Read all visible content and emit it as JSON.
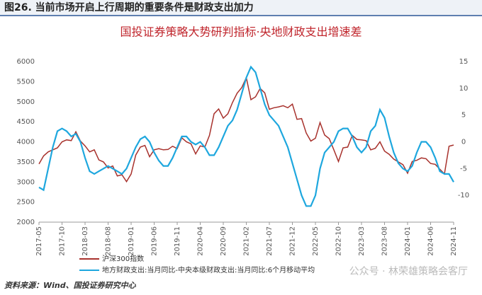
{
  "header": "图26. 当前市场开启上行周期的重要条件是财政支出加力",
  "source": "资料来源：Wind、国投证券研究中心",
  "watermark": "公众号 · 林荣雄策略会客厅",
  "chart_data": {
    "type": "line",
    "title": "国投证券策略大势研判指标·央地财政支出增速差",
    "categories": [
      "2017-05",
      null,
      null,
      null,
      null,
      "2017-10",
      null,
      null,
      null,
      null,
      "2018-03",
      null,
      null,
      null,
      null,
      "2018-08",
      null,
      null,
      null,
      null,
      "2019-01",
      null,
      null,
      null,
      null,
      "2019-06",
      null,
      null,
      null,
      null,
      "2019-11",
      null,
      null,
      null,
      null,
      "2020-04",
      null,
      null,
      null,
      null,
      "2020-09",
      null,
      null,
      null,
      null,
      "2021-02",
      null,
      null,
      null,
      null,
      "2021-07",
      null,
      null,
      null,
      null,
      "2021-12",
      null,
      null,
      null,
      null,
      "2022-05",
      null,
      null,
      null,
      null,
      "2022-10",
      null,
      null,
      null,
      null,
      "2023-03",
      null,
      null,
      null,
      null,
      "2023-08",
      null,
      null,
      null,
      null,
      "2024-01",
      null,
      null,
      null,
      null,
      "2024-06",
      null,
      null,
      null,
      null,
      "2024-11"
    ],
    "series": [
      {
        "name": "沪深300指数",
        "color": "#a8322d",
        "axis": "y",
        "values": [
          3450,
          3650,
          3750,
          3800,
          3850,
          4000,
          4050,
          4030,
          4250,
          4020,
          3900,
          3750,
          3800,
          3550,
          3500,
          3350,
          3400,
          3150,
          3180,
          3010,
          3200,
          3670,
          3870,
          3910,
          3630,
          3800,
          3830,
          3800,
          3810,
          3890,
          3830,
          4100,
          4000,
          3950,
          3700,
          3900,
          3870,
          4160,
          4700,
          4820,
          4590,
          4700,
          4980,
          5210,
          5350,
          5600,
          5050,
          5120,
          5330,
          5220,
          4810,
          4850,
          4870,
          4900,
          4850,
          4940,
          4560,
          4580,
          4220,
          4020,
          4090,
          4480,
          4170,
          4080,
          3800,
          3510,
          3850,
          3870,
          4160,
          4060,
          4050,
          4030,
          3800,
          3840,
          4000,
          3770,
          3690,
          3570,
          3500,
          3430,
          3220,
          3510,
          3540,
          3600,
          3580,
          3460,
          3440,
          3320,
          3200,
          3890,
          3920
        ]
      },
      {
        "name": "地方财政支出:当月同比-中央本级财政支出:当月同比:6个月移动平均",
        "color": "#1ea7de",
        "axis": "y2",
        "values": [
          -8.5,
          -9,
          -5,
          -1,
          2,
          2.5,
          2,
          1,
          1.5,
          0,
          -3,
          -5.5,
          -6,
          -5.5,
          -5,
          -4.5,
          -5,
          -5.5,
          -6,
          -5,
          -3,
          -1,
          0.5,
          1,
          0,
          -2,
          -3.5,
          -4.5,
          -4.5,
          -3,
          -1,
          1,
          1,
          0,
          -0.5,
          0,
          -1,
          -2.5,
          -2.5,
          -1,
          1,
          3,
          4,
          6,
          9,
          12,
          14,
          13,
          10,
          7,
          5,
          4,
          3,
          1,
          -1,
          -4,
          -7,
          -10,
          -12,
          -12,
          -10,
          -5,
          -2,
          -1,
          0,
          2,
          2.5,
          2.5,
          1,
          -1,
          -2,
          -1,
          2,
          3,
          6,
          4.5,
          1,
          -2,
          -4,
          -5,
          -5.5,
          -4.5,
          -2,
          0,
          0,
          -1,
          -3,
          -5.5,
          -6,
          -6,
          -7.5
        ]
      }
    ],
    "ylim": [
      2000,
      6000
    ],
    "yticks": [
      2000,
      2500,
      3000,
      3500,
      4000,
      4500,
      5000,
      5500,
      6000
    ],
    "y2lim": [
      -15,
      15
    ],
    "y2ticks": [
      -10,
      -5,
      0,
      5,
      10,
      15
    ]
  }
}
